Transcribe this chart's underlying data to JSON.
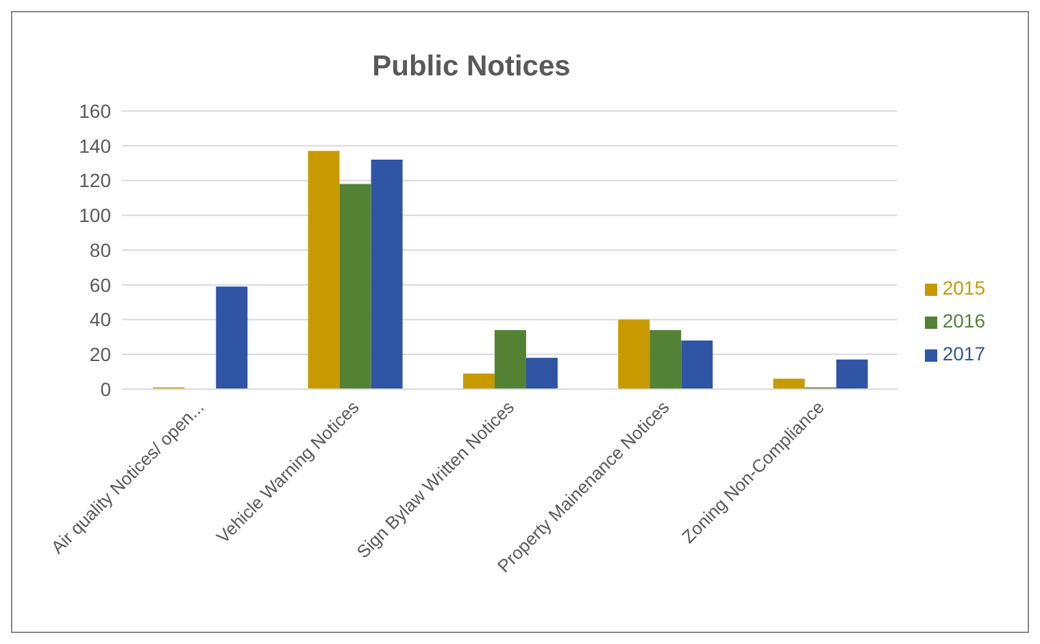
{
  "chart_data": {
    "type": "bar",
    "title": "Public Notices",
    "categories": [
      "Air quality Notices/ open...",
      "Vehicle Warning Notices",
      "Sign Bylaw Written Notices",
      "Property Mainenance Notices",
      "Zoning Non-Compliance"
    ],
    "series": [
      {
        "name": "2015",
        "color": "#c89a00",
        "values": [
          1,
          137,
          9,
          40,
          6
        ]
      },
      {
        "name": "2016",
        "color": "#548235",
        "values": [
          0,
          118,
          34,
          34,
          1
        ]
      },
      {
        "name": "2017",
        "color": "#2f55a4",
        "values": [
          59,
          132,
          18,
          28,
          17
        ]
      }
    ],
    "ylim": [
      0,
      160
    ],
    "yticks": [
      0,
      20,
      40,
      60,
      80,
      100,
      120,
      140,
      160
    ],
    "grid": "y",
    "legend": "right"
  }
}
